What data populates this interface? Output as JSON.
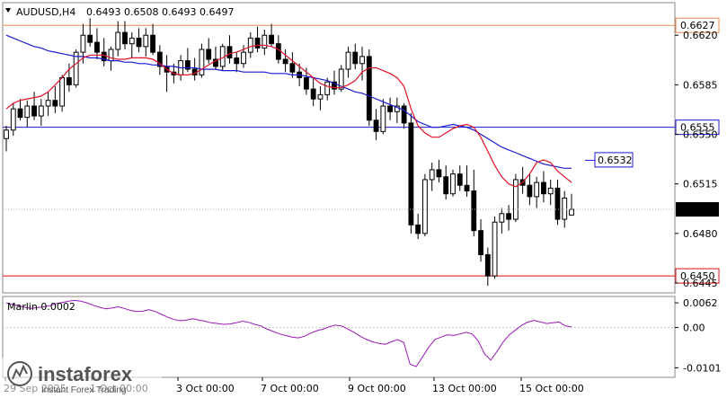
{
  "header": {
    "symbol": "AUDUSD,H4",
    "ohlc": "0.6493 0.6508 0.6493 0.6497"
  },
  "watermark": {
    "brand": "instaforex",
    "tagline": "Instant Forex Trading"
  },
  "colors": {
    "candle_up": "#ffffff",
    "candle_down": "#000000",
    "ma_fast": "#e0102a",
    "ma_slow": "#1a1ad0",
    "level_orange": "#f08a4b",
    "level_blue": "#1a1ad0",
    "level_red": "#e01010",
    "oscillator": "#9a18b8"
  },
  "chart_data": [
    {
      "type": "candlestick",
      "title": "AUDUSD,H4",
      "ylim": [
        0.6438,
        0.6643
      ],
      "yticks": [
        "0.6620",
        "0.6585",
        "0.6550",
        "0.6515",
        "0.6480",
        "0.6445"
      ],
      "x_labels": [
        "29 Sep 2025",
        "1 Oct 00:00",
        "3 Oct 00:00",
        "7 Oct 00:00",
        "9 Oct 00:00",
        "13 Oct 00:00",
        "15 Oct 00:00"
      ],
      "levels": [
        {
          "value": 0.6627,
          "label": "0.6627",
          "color": "#f08a4b"
        },
        {
          "value": 0.6555,
          "label": "0.6555",
          "color": "#1a1ad0"
        },
        {
          "value": 0.6532,
          "label": "0.6532",
          "color": "#1a1ad0",
          "style": "callout"
        },
        {
          "value": 0.645,
          "label": "0.6450",
          "color": "#e01010"
        }
      ],
      "current_price": "0.6497",
      "candles": [
        [
          0.6547,
          0.6556,
          0.6538,
          0.6553
        ],
        [
          0.6553,
          0.6572,
          0.6549,
          0.6568
        ],
        [
          0.6568,
          0.6575,
          0.656,
          0.6562
        ],
        [
          0.6562,
          0.6574,
          0.6555,
          0.657
        ],
        [
          0.657,
          0.658,
          0.656,
          0.6563
        ],
        [
          0.6563,
          0.6575,
          0.6556,
          0.657
        ],
        [
          0.657,
          0.658,
          0.6563,
          0.6574
        ],
        [
          0.6574,
          0.6584,
          0.6565,
          0.657
        ],
        [
          0.657,
          0.6592,
          0.6566,
          0.659
        ],
        [
          0.659,
          0.66,
          0.658,
          0.6585
        ],
        [
          0.6585,
          0.661,
          0.6583,
          0.6608
        ],
        [
          0.6608,
          0.6628,
          0.66,
          0.662
        ],
        [
          0.662,
          0.6632,
          0.6612,
          0.6615
        ],
        [
          0.6615,
          0.6625,
          0.6603,
          0.6608
        ],
        [
          0.6608,
          0.6618,
          0.6598,
          0.6602
        ],
        [
          0.6602,
          0.6612,
          0.6595,
          0.661
        ],
        [
          0.661,
          0.663,
          0.6605,
          0.6622
        ],
        [
          0.6622,
          0.663,
          0.661,
          0.6614
        ],
        [
          0.6614,
          0.6622,
          0.6604,
          0.6618
        ],
        [
          0.6618,
          0.6625,
          0.6608,
          0.6612
        ],
        [
          0.6612,
          0.6625,
          0.6605,
          0.662
        ],
        [
          0.662,
          0.6628,
          0.6606,
          0.6608
        ],
        [
          0.6608,
          0.6613,
          0.6592,
          0.6598
        ],
        [
          0.6598,
          0.6606,
          0.658,
          0.6594
        ],
        [
          0.6594,
          0.66,
          0.6586,
          0.6592
        ],
        [
          0.6592,
          0.6606,
          0.6588,
          0.6602
        ],
        [
          0.6602,
          0.6611,
          0.6594,
          0.6596
        ],
        [
          0.6596,
          0.6604,
          0.6588,
          0.6592
        ],
        [
          0.6592,
          0.6614,
          0.659,
          0.661
        ],
        [
          0.661,
          0.6618,
          0.66,
          0.6603
        ],
        [
          0.6603,
          0.6612,
          0.6596,
          0.6598
        ],
        [
          0.6598,
          0.6614,
          0.6595,
          0.6612
        ],
        [
          0.6612,
          0.662,
          0.66,
          0.6604
        ],
        [
          0.6604,
          0.6608,
          0.6594,
          0.66
        ],
        [
          0.66,
          0.6613,
          0.6597,
          0.6608
        ],
        [
          0.6608,
          0.6622,
          0.6604,
          0.6618
        ],
        [
          0.6618,
          0.6626,
          0.6608,
          0.6611
        ],
        [
          0.6611,
          0.6624,
          0.6606,
          0.662
        ],
        [
          0.662,
          0.6628,
          0.6612,
          0.6614
        ],
        [
          0.6614,
          0.662,
          0.66,
          0.6603
        ],
        [
          0.6603,
          0.661,
          0.6594,
          0.66
        ],
        [
          0.66,
          0.6608,
          0.659,
          0.6594
        ],
        [
          0.6594,
          0.66,
          0.6584,
          0.659
        ],
        [
          0.659,
          0.6597,
          0.6578,
          0.6582
        ],
        [
          0.6582,
          0.659,
          0.657,
          0.6575
        ],
        [
          0.6575,
          0.6584,
          0.6567,
          0.6578
        ],
        [
          0.6578,
          0.659,
          0.6574,
          0.6587
        ],
        [
          0.6587,
          0.6595,
          0.6578,
          0.6582
        ],
        [
          0.6582,
          0.6599,
          0.658,
          0.6596
        ],
        [
          0.6596,
          0.6612,
          0.659,
          0.6608
        ],
        [
          0.6608,
          0.6614,
          0.6596,
          0.66
        ],
        [
          0.66,
          0.6612,
          0.6588,
          0.6605
        ],
        [
          0.6605,
          0.661,
          0.6556,
          0.656
        ],
        [
          0.656,
          0.6568,
          0.6546,
          0.6552
        ],
        [
          0.6552,
          0.6575,
          0.655,
          0.657
        ],
        [
          0.657,
          0.6576,
          0.656,
          0.6566
        ],
        [
          0.6566,
          0.6576,
          0.6558,
          0.657
        ],
        [
          0.657,
          0.6572,
          0.6554,
          0.6558
        ],
        [
          0.6558,
          0.6565,
          0.648,
          0.6486
        ],
        [
          0.6486,
          0.6494,
          0.6476,
          0.648
        ],
        [
          0.648,
          0.6522,
          0.6478,
          0.6518
        ],
        [
          0.6518,
          0.653,
          0.651,
          0.6525
        ],
        [
          0.6525,
          0.6532,
          0.6516,
          0.652
        ],
        [
          0.652,
          0.6528,
          0.6504,
          0.6508
        ],
        [
          0.6508,
          0.6525,
          0.6506,
          0.6522
        ],
        [
          0.6522,
          0.6528,
          0.651,
          0.6514
        ],
        [
          0.6514,
          0.6528,
          0.6506,
          0.651
        ],
        [
          0.651,
          0.6525,
          0.6478,
          0.6482
        ],
        [
          0.6482,
          0.649,
          0.646,
          0.6465
        ],
        [
          0.6465,
          0.647,
          0.6443,
          0.645
        ],
        [
          0.645,
          0.6492,
          0.6448,
          0.6488
        ],
        [
          0.6488,
          0.6498,
          0.648,
          0.6494
        ],
        [
          0.6494,
          0.65,
          0.6482,
          0.649
        ],
        [
          0.649,
          0.6522,
          0.6488,
          0.6518
        ],
        [
          0.6518,
          0.6527,
          0.6508,
          0.6514
        ],
        [
          0.6514,
          0.6522,
          0.65,
          0.6506
        ],
        [
          0.6506,
          0.652,
          0.6498,
          0.6516
        ],
        [
          0.6516,
          0.6524,
          0.6502,
          0.6508
        ],
        [
          0.6508,
          0.6518,
          0.65,
          0.6512
        ],
        [
          0.6512,
          0.6518,
          0.6486,
          0.649
        ],
        [
          0.649,
          0.651,
          0.6484,
          0.6505
        ],
        [
          0.6493,
          0.6508,
          0.6493,
          0.6497
        ]
      ],
      "ma_fast": {
        "name": "",
        "values": [
          0.6568,
          0.6572,
          0.6574,
          0.6575,
          0.6576,
          0.6577,
          0.658,
          0.6585,
          0.659,
          0.6596,
          0.66,
          0.6604,
          0.6606,
          0.6606,
          0.6606,
          0.6604,
          0.6603,
          0.6603,
          0.6604,
          0.6604,
          0.6604,
          0.6603,
          0.66,
          0.6596,
          0.6593,
          0.6592,
          0.6592,
          0.6593,
          0.6596,
          0.6599,
          0.6602,
          0.6604,
          0.6607,
          0.6608,
          0.661,
          0.6612,
          0.6613,
          0.6613,
          0.6612,
          0.661,
          0.6606,
          0.6602,
          0.6598,
          0.6594,
          0.659,
          0.6586,
          0.6584,
          0.6583,
          0.6583,
          0.6585,
          0.6588,
          0.6594,
          0.6597,
          0.6597,
          0.6595,
          0.6593,
          0.659,
          0.6584,
          0.6568,
          0.6556,
          0.6551,
          0.6548,
          0.6548,
          0.6551,
          0.6554,
          0.6556,
          0.6557,
          0.6555,
          0.6548,
          0.6538,
          0.6528,
          0.652,
          0.6515,
          0.6513,
          0.6516,
          0.6522,
          0.653,
          0.6532,
          0.653,
          0.6524,
          0.652,
          0.6516
        ]
      },
      "ma_slow": {
        "name": "",
        "values": [
          0.662,
          0.6618,
          0.6616,
          0.6614,
          0.6612,
          0.6611,
          0.6609,
          0.6608,
          0.6607,
          0.6606,
          0.6605,
          0.6605,
          0.6604,
          0.6604,
          0.6603,
          0.6602,
          0.6602,
          0.6601,
          0.6601,
          0.66,
          0.66,
          0.6599,
          0.6599,
          0.6598,
          0.6598,
          0.6597,
          0.6597,
          0.6597,
          0.6596,
          0.6596,
          0.6596,
          0.6595,
          0.6595,
          0.6595,
          0.6594,
          0.6594,
          0.6594,
          0.6594,
          0.6593,
          0.6593,
          0.6593,
          0.6592,
          0.6592,
          0.6591,
          0.659,
          0.6589,
          0.6588,
          0.6586,
          0.6584,
          0.6582,
          0.658,
          0.6579,
          0.6577,
          0.6575,
          0.6573,
          0.6571,
          0.6569,
          0.6567,
          0.6563,
          0.6559,
          0.6557,
          0.6555,
          0.6555,
          0.6556,
          0.6557,
          0.6556,
          0.6555,
          0.6553,
          0.655,
          0.6547,
          0.6544,
          0.6541,
          0.6539,
          0.6537,
          0.6535,
          0.6533,
          0.6531,
          0.6529,
          0.6528,
          0.6527,
          0.6526,
          0.6526
        ]
      }
    },
    {
      "type": "line",
      "title": "Marlin 0.0002",
      "ylim": [
        -0.0125,
        0.0078
      ],
      "yticks": [
        "0.0062",
        "0.00",
        "-0.0101"
      ],
      "series": [
        {
          "name": "Marlin",
          "values": [
            0.0062,
            0.0058,
            0.0054,
            0.0051,
            0.0048,
            0.005,
            0.0052,
            0.0055,
            0.006,
            0.0063,
            0.0066,
            0.0068,
            0.0066,
            0.0062,
            0.0056,
            0.0051,
            0.0047,
            0.0049,
            0.0052,
            0.0048,
            0.0043,
            0.004,
            0.0041,
            0.0045,
            0.004,
            0.0033,
            0.0026,
            0.002,
            0.0017,
            0.0019,
            0.0022,
            0.0019,
            0.0016,
            0.0012,
            0.001,
            0.0008,
            0.0009,
            0.0012,
            0.0016,
            0.0013,
            0.0008,
            0.0004,
            -0.0004,
            -0.001,
            -0.0016,
            -0.002,
            -0.0024,
            -0.0026,
            -0.0022,
            -0.0014,
            -0.0008,
            -0.0004,
            0.0002,
            0.0006,
            0.0004,
            -0.0004,
            -0.0012,
            -0.0022,
            -0.003,
            -0.0036,
            -0.004,
            -0.0042,
            -0.0036,
            -0.003,
            -0.0038,
            -0.0092,
            -0.0098,
            -0.0074,
            -0.005,
            -0.003,
            -0.0024,
            -0.0018,
            -0.002,
            -0.0016,
            -0.0012,
            -0.0016,
            -0.0034,
            -0.0066,
            -0.0082,
            -0.006,
            -0.0036,
            -0.0018,
            -0.0006,
            0.0006,
            0.0014,
            0.0018,
            0.0014,
            0.001,
            0.0012,
            0.0014,
            0.0004,
            0.0002
          ]
        }
      ]
    }
  ]
}
